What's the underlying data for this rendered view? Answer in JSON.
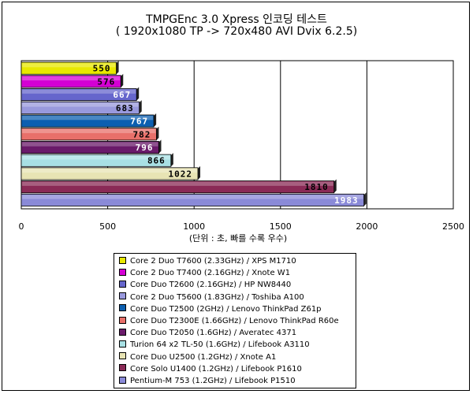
{
  "chart_data": {
    "type": "bar",
    "orientation": "horizontal",
    "title": "TMPGEnc 3.0 Xpress 인코딩 테스트",
    "subtitle": "( 1920x1080 TP -> 720x480 AVI Dvix 6.2.5)",
    "xlabel": "(단위 : 초, 빠를 수록 우수)",
    "xlim": [
      0,
      2500
    ],
    "xticks": [
      0,
      500,
      1000,
      1500,
      2000,
      2500
    ],
    "grid": true,
    "legend_position": "bottom",
    "categories": [
      "Core 2 Duo T7600 (2.33GHz) / XPS M1710",
      "Core 2 Duo T7400 (2.16GHz) / Xnote W1",
      "Core Duo T2600 (2.16GHz) / HP NW8440",
      "Core 2 Duo T5600 (1.83GHz) / Toshiba A100",
      "Core Duo T2500 (2GHz) / Lenovo ThinkPad Z61p",
      "Core Duo T2300E (1.66GHz) / Lenovo ThinkPad R60e",
      "Core Duo T2050 (1.6GHz) / Averatec 4371",
      "Turion 64 x2 TL-50 (1.6GHz) / Lifebook A3110",
      "Core Duo U2500 (1.2GHz) / Xnote A1",
      "Core Solo U1400 (1.2GHz) / Lifebook P1610",
      "Pentium-M 753 (1.2GHz) / Lifebook P1510"
    ],
    "values": [
      550,
      576,
      667,
      683,
      767,
      782,
      796,
      866,
      1022,
      1810,
      1983
    ],
    "colors": [
      "#e8e800",
      "#d400d4",
      "#6666cc",
      "#9999dd",
      "#0c5fb0",
      "#e8706a",
      "#6a1a6a",
      "#a8e0e4",
      "#e8e4b4",
      "#8a2a56",
      "#8a8ad8"
    ],
    "value_label_colors": [
      "#000000",
      "#000000",
      "#ffffff",
      "#000000",
      "#ffffff",
      "#000000",
      "#ffffff",
      "#000000",
      "#000000",
      "#000000",
      "#ffffff"
    ]
  },
  "legend": {
    "items": [
      "Core 2 Duo T7600 (2.33GHz) / XPS M1710",
      "Core 2 Duo T7400 (2.16GHz) / Xnote W1",
      "Core Duo T2600 (2.16GHz) / HP NW8440",
      "Core 2 Duo T5600 (1.83GHz) / Toshiba A100",
      "Core Duo T2500 (2GHz) / Lenovo ThinkPad Z61p",
      "Core Duo T2300E (1.66GHz) / Lenovo ThinkPad R60e",
      "Core Duo T2050 (1.6GHz) / Averatec 4371",
      "Turion 64 x2 TL-50 (1.6GHz) / Lifebook A3110",
      "Core Duo U2500 (1.2GHz) / Xnote A1",
      "Core Solo U1400 (1.2GHz) / Lifebook P1610",
      "Pentium-M 753 (1.2GHz) / Lifebook P1510"
    ]
  }
}
